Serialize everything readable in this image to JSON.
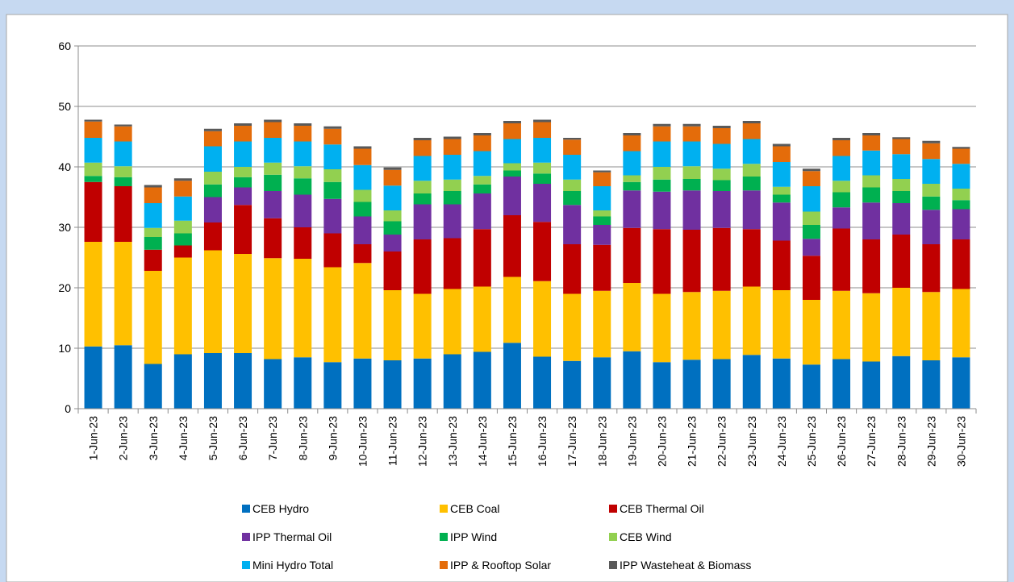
{
  "chart_data": {
    "type": "stacked_bar",
    "categories": [
      "1-Jun-23",
      "2-Jun-23",
      "3-Jun-23",
      "4-Jun-23",
      "5-Jun-23",
      "6-Jun-23",
      "7-Jun-23",
      "8-Jun-23",
      "9-Jun-23",
      "10-Jun-23",
      "11-Jun-23",
      "12-Jun-23",
      "13-Jun-23",
      "14-Jun-23",
      "15-Jun-23",
      "16-Jun-23",
      "17-Jun-23",
      "18-Jun-23",
      "19-Jun-23",
      "20-Jun-23",
      "21-Jun-23",
      "22-Jun-23",
      "23-Jun-23",
      "24-Jun-23",
      "25-Jun-23",
      "26-Jun-23",
      "27-Jun-23",
      "28-Jun-23",
      "29-Jun-23",
      "30-Jun-23"
    ],
    "series": [
      {
        "name": "CEB Hydro",
        "color": "#0070c0",
        "values": [
          10.3,
          10.5,
          7.4,
          9.0,
          9.2,
          9.2,
          8.2,
          8.5,
          7.7,
          8.3,
          8.0,
          8.3,
          9.0,
          9.4,
          10.9,
          8.6,
          7.9,
          8.5,
          9.5,
          7.7,
          8.1,
          8.2,
          8.9,
          8.3,
          7.3,
          8.2,
          7.8,
          8.7,
          8.0,
          8.5
        ]
      },
      {
        "name": "CEB Coal",
        "color": "#ffc000",
        "values": [
          17.3,
          17.1,
          15.4,
          16.0,
          17.0,
          16.4,
          16.7,
          16.3,
          15.7,
          15.8,
          11.6,
          10.7,
          10.8,
          10.8,
          10.9,
          12.5,
          11.1,
          11.0,
          11.3,
          11.3,
          11.2,
          11.3,
          11.3,
          11.3,
          10.7,
          11.3,
          11.3,
          11.3,
          11.3,
          11.3
        ]
      },
      {
        "name": "CEB Thermal Oil",
        "color": "#c00000",
        "values": [
          9.9,
          9.2,
          3.5,
          2.0,
          4.6,
          8.1,
          6.6,
          5.2,
          5.6,
          3.1,
          6.4,
          9.0,
          8.4,
          9.5,
          10.2,
          9.8,
          8.2,
          7.6,
          9.1,
          10.7,
          10.3,
          10.4,
          9.5,
          8.2,
          7.3,
          10.3,
          8.9,
          8.8,
          7.9,
          8.2
        ]
      },
      {
        "name": "IPP Thermal Oil",
        "color": "#7030a0",
        "values": [
          0,
          0,
          0,
          0,
          4.2,
          2.9,
          4.5,
          5.4,
          5.7,
          4.6,
          2.8,
          5.8,
          5.6,
          5.9,
          6.4,
          6.3,
          6.5,
          3.3,
          6.2,
          6.2,
          6.5,
          6.1,
          6.4,
          6.3,
          2.8,
          3.5,
          6.1,
          5.2,
          5.7,
          5.0
        ]
      },
      {
        "name": "IPP Wind",
        "color": "#00b050",
        "values": [
          1.0,
          1.5,
          2.1,
          2.0,
          2.1,
          1.7,
          2.7,
          2.7,
          2.8,
          2.4,
          2.2,
          1.8,
          2.2,
          1.5,
          1.0,
          1.7,
          2.3,
          1.4,
          1.4,
          2.0,
          1.9,
          1.8,
          2.3,
          1.3,
          2.3,
          2.5,
          2.5,
          2.0,
          2.2,
          1.5
        ]
      },
      {
        "name": "CEB Wind",
        "color": "#92d050",
        "values": [
          2.2,
          1.8,
          1.5,
          2.1,
          2.1,
          1.7,
          2.0,
          2.0,
          2.1,
          2.0,
          1.8,
          2.1,
          1.9,
          1.4,
          1.2,
          1.8,
          1.9,
          1.0,
          1.1,
          2.1,
          2.1,
          1.9,
          2.1,
          1.3,
          2.2,
          1.9,
          2.0,
          2.0,
          2.1,
          1.9
        ]
      },
      {
        "name": "Mini Hydro Total",
        "color": "#00b0f0",
        "values": [
          4.1,
          4.1,
          4.1,
          4.0,
          4.2,
          4.2,
          4.1,
          4.1,
          4.1,
          4.1,
          4.1,
          4.1,
          4.1,
          4.1,
          4.0,
          4.1,
          4.1,
          4.0,
          4.0,
          4.2,
          4.1,
          4.1,
          4.1,
          4.1,
          4.2,
          4.1,
          4.1,
          4.1,
          4.1,
          4.1
        ]
      },
      {
        "name": "IPP & Rooftop Solar",
        "color": "#e46c0a",
        "values": [
          2.7,
          2.5,
          2.6,
          2.6,
          2.5,
          2.6,
          2.6,
          2.6,
          2.6,
          2.7,
          2.6,
          2.6,
          2.6,
          2.6,
          2.6,
          2.6,
          2.5,
          2.3,
          2.6,
          2.5,
          2.5,
          2.6,
          2.6,
          2.6,
          2.5,
          2.6,
          2.5,
          2.5,
          2.6,
          2.5
        ]
      },
      {
        "name": "IPP Wasteheat & Biomass",
        "color": "#595959",
        "values": [
          0.3,
          0.3,
          0.4,
          0.4,
          0.4,
          0.4,
          0.4,
          0.4,
          0.4,
          0.4,
          0.4,
          0.4,
          0.4,
          0.4,
          0.4,
          0.4,
          0.3,
          0.3,
          0.4,
          0.4,
          0.4,
          0.4,
          0.4,
          0.4,
          0.4,
          0.4,
          0.4,
          0.3,
          0.4,
          0.3
        ]
      }
    ],
    "ylim": [
      0,
      60
    ],
    "yticks": [
      0,
      10,
      20,
      30,
      40,
      50,
      60
    ],
    "grid": true,
    "legend": "bottom"
  }
}
